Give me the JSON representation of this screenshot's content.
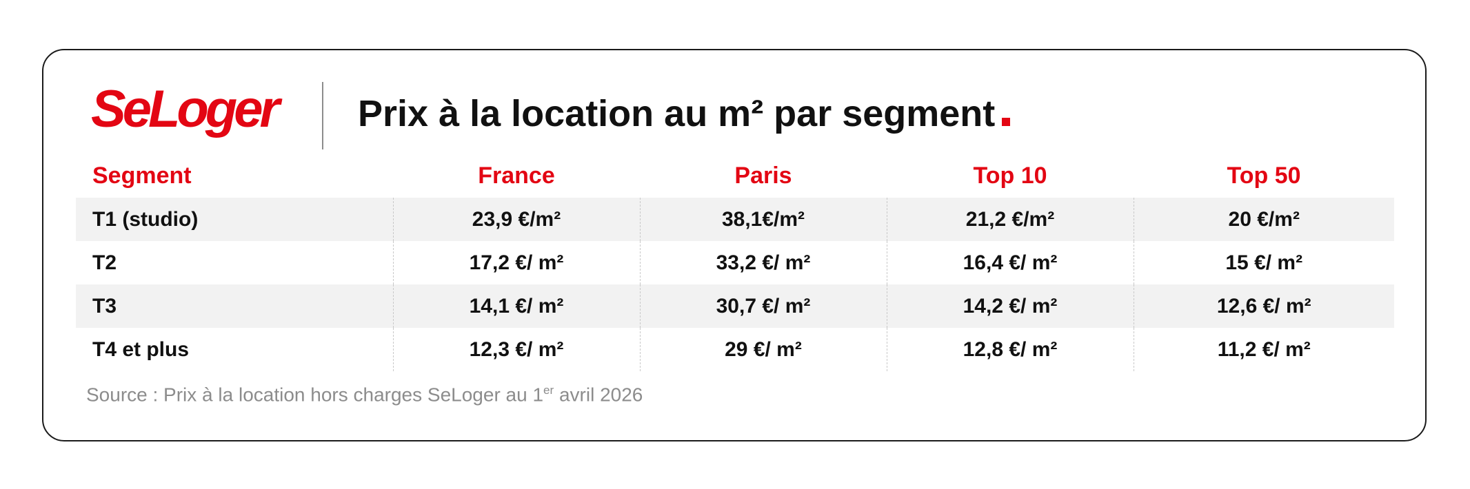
{
  "brand": {
    "logo_text": "SeLoger",
    "accent_color": "#e30613"
  },
  "title": "Prix à la location au m² par segment",
  "table": {
    "headers": [
      "Segment",
      "France",
      "Paris",
      "Top 10",
      "Top 50"
    ],
    "rows": [
      [
        "T1 (studio)",
        "23,9 €/m²",
        "38,1€/m²",
        "21,2 €/m²",
        "20 €/m²"
      ],
      [
        "T2",
        "17,2 €/ m²",
        "33,2 €/ m²",
        "16,4 €/ m²",
        "15 €/ m²"
      ],
      [
        "T3",
        "14,1 €/ m²",
        "30,7 €/ m²",
        "14,2 €/ m²",
        "12,6 €/ m²"
      ],
      [
        "T4 et plus",
        "12,3 €/ m²",
        "29 €/ m²",
        "12,8 €/ m²",
        "11,2 €/ m²"
      ]
    ]
  },
  "source": {
    "prefix": "Source : Prix à la location hors charges SeLoger au 1",
    "superscript": "er",
    "suffix": " avril 2026"
  }
}
